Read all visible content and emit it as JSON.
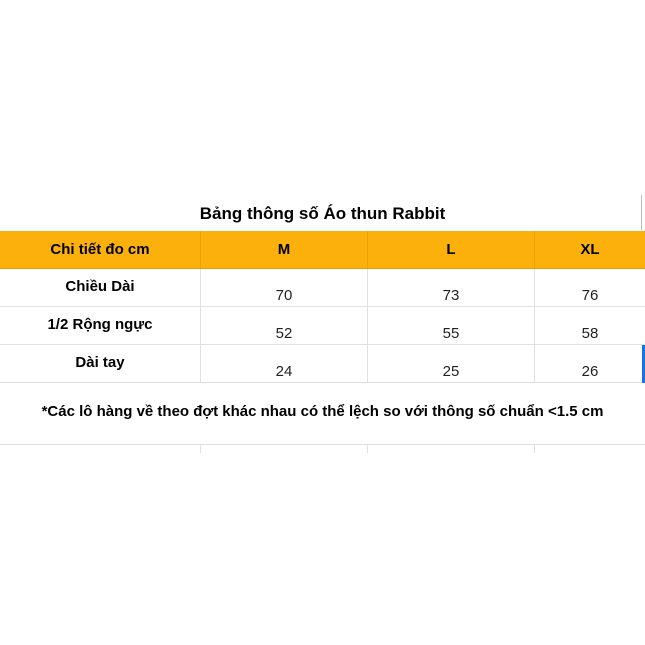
{
  "title": "Bảng thông số Áo thun Rabbit",
  "headers": [
    "Chi tiết đo cm",
    "M",
    "L",
    "XL"
  ],
  "rows": [
    {
      "label": "Chiều Dài",
      "values": [
        "70",
        "73",
        "76"
      ]
    },
    {
      "label": "1/2 Rộng ngực",
      "values": [
        "52",
        "55",
        "58"
      ]
    },
    {
      "label": "Dài tay",
      "values": [
        "24",
        "25",
        "26"
      ]
    }
  ],
  "note": "*Các lô hàng về theo đợt khác nhau có thể lệch so với thông số chuẩn <1.5 cm",
  "colors": {
    "header_bg": "#fbb00c",
    "selection": "#1a73e8"
  }
}
